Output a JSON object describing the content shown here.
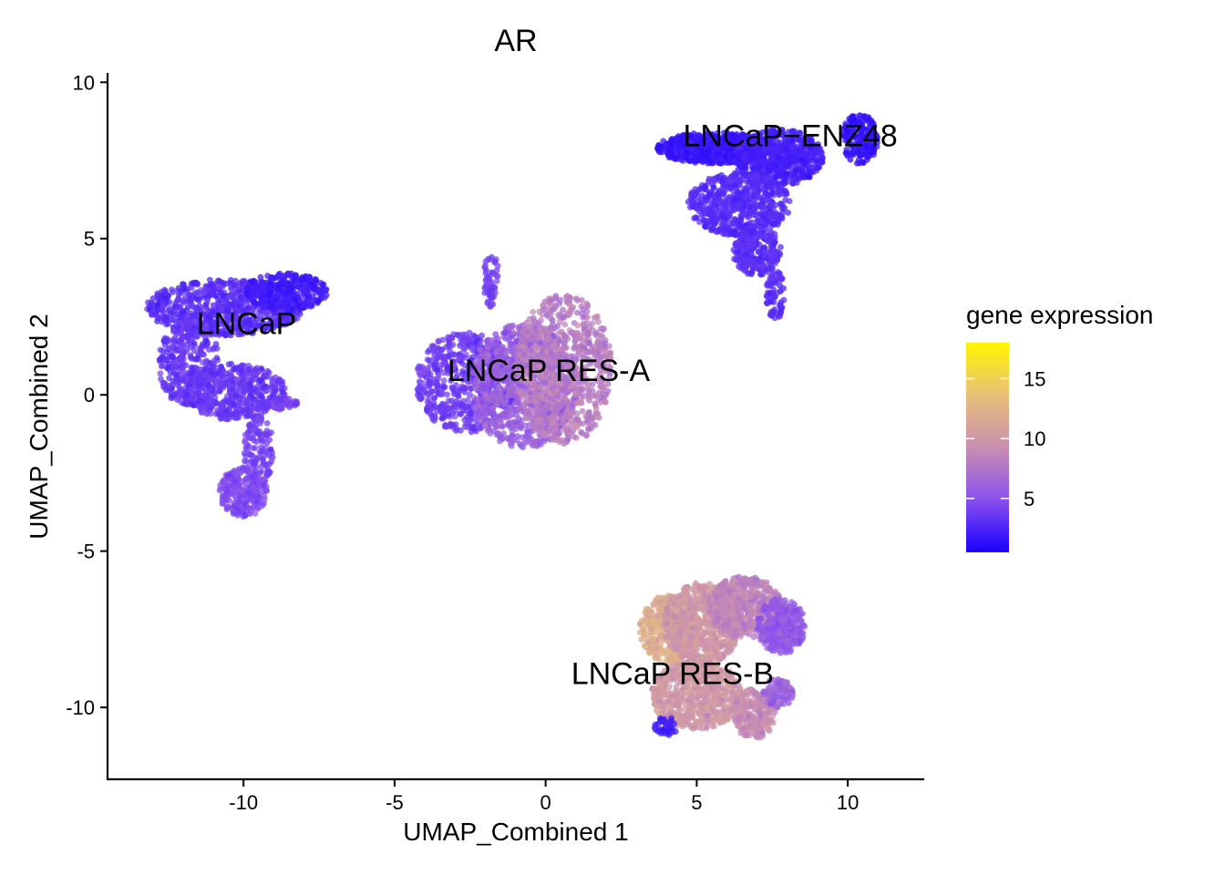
{
  "chart_data": {
    "type": "scatter",
    "title": "AR",
    "xlabel": "UMAP_Combined 1",
    "ylabel": "UMAP_Combined 2",
    "xlim": [
      -14.5,
      12.5
    ],
    "ylim": [
      -12.3,
      10.3
    ],
    "x_ticks": [
      -10,
      -5,
      0,
      5,
      10
    ],
    "x_tick_labels": [
      "-10",
      "-5",
      "0",
      "5",
      "10"
    ],
    "y_ticks": [
      -10,
      -5,
      0,
      5,
      10
    ],
    "y_tick_labels": [
      "-10",
      "-5",
      "0",
      "5",
      "10"
    ],
    "grid": false,
    "legend": {
      "title": "gene expression",
      "placement": "right",
      "range": [
        0.5,
        18
      ],
      "ticks": [
        5,
        10,
        15
      ],
      "tick_labels": [
        "5",
        "10",
        "15"
      ],
      "colors": [
        "#1a00ff",
        "#8a50ee",
        "#c98fb0",
        "#e8c07a",
        "#fff500"
      ]
    },
    "clusters": [
      {
        "name": "LNCaP",
        "label_x": -9.9,
        "label_y": 2.3,
        "mean_expression": 3.2
      },
      {
        "name": "LNCaP RES-A",
        "label_x": 0.1,
        "label_y": 0.8,
        "mean_expression": 6.0
      },
      {
        "name": "LNCaP−ENZ48",
        "label_x": 8.1,
        "label_y": 8.3,
        "mean_expression": 2.2
      },
      {
        "name": "LNCaP RES-B",
        "label_x": 4.2,
        "label_y": -8.9,
        "mean_expression": 9.5
      }
    ]
  }
}
